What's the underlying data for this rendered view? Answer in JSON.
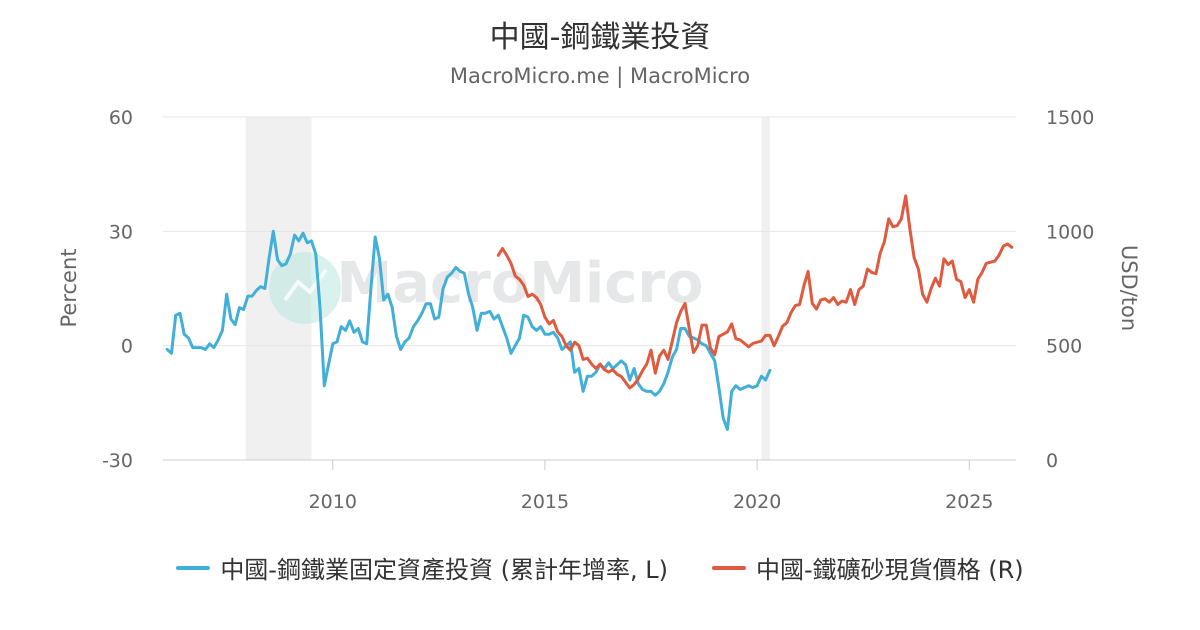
{
  "chart_data": {
    "type": "line",
    "title": "中國-鋼鐵業投資",
    "subtitle": "MacroMicro.me | MacroMicro",
    "watermark": "MacroMicro",
    "y_left": {
      "label": "Percent",
      "ticks": [
        "60",
        "30",
        "0",
        "-30"
      ],
      "range": [
        -30,
        60
      ]
    },
    "y_right": {
      "label": "USD/ton",
      "ticks": [
        "1500",
        "1000",
        "500",
        "0"
      ],
      "range": [
        0,
        1500
      ]
    },
    "x": {
      "ticks": [
        "2010",
        "2015",
        "2020",
        "2025"
      ],
      "range": [
        2006.0,
        2026.1
      ]
    },
    "recessions": [
      [
        2007.95,
        2009.5
      ],
      [
        2020.1,
        2020.3
      ]
    ],
    "grid": true,
    "series": [
      {
        "name": "中國-鋼鐵業固定資產投資 (累計年增率, L)",
        "axis": "left",
        "color": "#42afd8",
        "points": [
          [
            2006.1,
            -1
          ],
          [
            2006.2,
            -2
          ],
          [
            2006.3,
            8
          ],
          [
            2006.4,
            8.5
          ],
          [
            2006.5,
            3
          ],
          [
            2006.6,
            2
          ],
          [
            2006.7,
            -0.5
          ],
          [
            2006.8,
            -0.5
          ],
          [
            2006.9,
            -0.5
          ],
          [
            2007.0,
            -1
          ],
          [
            2007.1,
            0.5
          ],
          [
            2007.2,
            -0.5
          ],
          [
            2007.3,
            1.5
          ],
          [
            2007.4,
            4
          ],
          [
            2007.5,
            13.5
          ],
          [
            2007.6,
            7
          ],
          [
            2007.7,
            5.5
          ],
          [
            2007.8,
            10
          ],
          [
            2007.9,
            9.5
          ],
          [
            2008.0,
            13
          ],
          [
            2008.1,
            13
          ],
          [
            2008.2,
            14.5
          ],
          [
            2008.3,
            15.5
          ],
          [
            2008.4,
            15
          ],
          [
            2008.5,
            23
          ],
          [
            2008.6,
            30
          ],
          [
            2008.7,
            22.5
          ],
          [
            2008.8,
            21
          ],
          [
            2008.9,
            21.5
          ],
          [
            2009.0,
            24
          ],
          [
            2009.1,
            29
          ],
          [
            2009.2,
            27.5
          ],
          [
            2009.3,
            29.5
          ],
          [
            2009.4,
            27
          ],
          [
            2009.5,
            27.5
          ],
          [
            2009.6,
            24
          ],
          [
            2009.7,
            10
          ],
          [
            2009.8,
            -10.5
          ],
          [
            2009.9,
            -5
          ],
          [
            2010.0,
            0.5
          ],
          [
            2010.1,
            1
          ],
          [
            2010.2,
            5
          ],
          [
            2010.3,
            4
          ],
          [
            2010.4,
            6.5
          ],
          [
            2010.5,
            3.5
          ],
          [
            2010.6,
            4.5
          ],
          [
            2010.7,
            1
          ],
          [
            2010.8,
            0.5
          ],
          [
            2010.9,
            15
          ],
          [
            2011.0,
            28.5
          ],
          [
            2011.1,
            23
          ],
          [
            2011.2,
            12
          ],
          [
            2011.3,
            13.5
          ],
          [
            2011.4,
            10
          ],
          [
            2011.5,
            2.5
          ],
          [
            2011.6,
            -1
          ],
          [
            2011.7,
            1
          ],
          [
            2011.8,
            2
          ],
          [
            2011.9,
            5
          ],
          [
            2012.0,
            6.5
          ],
          [
            2012.1,
            8.5
          ],
          [
            2012.2,
            11
          ],
          [
            2012.3,
            11
          ],
          [
            2012.4,
            7
          ],
          [
            2012.5,
            7.5
          ],
          [
            2012.6,
            15
          ],
          [
            2012.7,
            18
          ],
          [
            2012.8,
            19
          ],
          [
            2012.9,
            20.5
          ],
          [
            2013.0,
            19.5
          ],
          [
            2013.1,
            19
          ],
          [
            2013.2,
            13.5
          ],
          [
            2013.3,
            10
          ],
          [
            2013.4,
            4
          ],
          [
            2013.5,
            8.5
          ],
          [
            2013.6,
            8.5
          ],
          [
            2013.7,
            9
          ],
          [
            2013.8,
            7
          ],
          [
            2013.9,
            8
          ],
          [
            2014.0,
            5
          ],
          [
            2014.1,
            2
          ],
          [
            2014.2,
            -2
          ],
          [
            2014.3,
            0
          ],
          [
            2014.4,
            2
          ],
          [
            2014.5,
            8
          ],
          [
            2014.6,
            7.5
          ],
          [
            2014.7,
            5
          ],
          [
            2014.8,
            4
          ],
          [
            2014.9,
            5
          ],
          [
            2015.0,
            3
          ],
          [
            2015.1,
            3
          ],
          [
            2015.2,
            3.5
          ],
          [
            2015.3,
            2
          ],
          [
            2015.4,
            -1
          ],
          [
            2015.5,
            0
          ],
          [
            2015.6,
            1
          ],
          [
            2015.7,
            -7
          ],
          [
            2015.8,
            -6
          ],
          [
            2015.9,
            -12
          ],
          [
            2016.0,
            -8
          ],
          [
            2016.1,
            -8
          ],
          [
            2016.2,
            -7
          ],
          [
            2016.3,
            -5
          ],
          [
            2016.4,
            -6
          ],
          [
            2016.5,
            -4.5
          ],
          [
            2016.6,
            -6
          ],
          [
            2016.7,
            -5
          ],
          [
            2016.8,
            -4
          ],
          [
            2016.9,
            -5
          ],
          [
            2017.0,
            -9
          ],
          [
            2017.1,
            -6
          ],
          [
            2017.2,
            -10
          ],
          [
            2017.3,
            -11.5
          ],
          [
            2017.4,
            -12
          ],
          [
            2017.5,
            -12
          ],
          [
            2017.6,
            -13
          ],
          [
            2017.7,
            -12
          ],
          [
            2017.8,
            -10
          ],
          [
            2017.9,
            -7
          ],
          [
            2018.0,
            -3
          ],
          [
            2018.1,
            -1
          ],
          [
            2018.2,
            4.5
          ],
          [
            2018.3,
            4.5
          ],
          [
            2018.4,
            2.5
          ],
          [
            2018.5,
            2
          ],
          [
            2018.6,
            1.5
          ],
          [
            2018.7,
            0.5
          ],
          [
            2018.8,
            0
          ],
          [
            2018.9,
            -2
          ],
          [
            2019.0,
            -4
          ],
          [
            2019.1,
            -11
          ],
          [
            2019.2,
            -19
          ],
          [
            2019.3,
            -22
          ],
          [
            2019.4,
            -12
          ],
          [
            2019.5,
            -10.5
          ],
          [
            2019.6,
            -11.5
          ],
          [
            2019.7,
            -11
          ],
          [
            2019.8,
            -10.5
          ],
          [
            2019.9,
            -11
          ],
          [
            2020.0,
            -10.5
          ],
          [
            2020.1,
            -8
          ],
          [
            2020.2,
            -9
          ],
          [
            2020.3,
            -6.5
          ]
        ]
      },
      {
        "name": "中國-鐵礦砂現貨價格 (R)",
        "axis": "right",
        "color": "#e05a3f",
        "points": [
          [
            2013.9,
            895
          ],
          [
            2014.0,
            925
          ],
          [
            2014.1,
            895
          ],
          [
            2014.2,
            860
          ],
          [
            2014.3,
            805
          ],
          [
            2014.4,
            790
          ],
          [
            2014.5,
            765
          ],
          [
            2014.6,
            715
          ],
          [
            2014.7,
            725
          ],
          [
            2014.8,
            710
          ],
          [
            2014.9,
            680
          ],
          [
            2015.0,
            625
          ],
          [
            2015.1,
            595
          ],
          [
            2015.2,
            610
          ],
          [
            2015.3,
            560
          ],
          [
            2015.4,
            540
          ],
          [
            2015.5,
            500
          ],
          [
            2015.6,
            480
          ],
          [
            2015.7,
            515
          ],
          [
            2015.8,
            500
          ],
          [
            2015.9,
            440
          ],
          [
            2016.0,
            445
          ],
          [
            2016.1,
            420
          ],
          [
            2016.2,
            400
          ],
          [
            2016.3,
            420
          ],
          [
            2016.4,
            395
          ],
          [
            2016.5,
            385
          ],
          [
            2016.6,
            395
          ],
          [
            2016.7,
            375
          ],
          [
            2016.8,
            365
          ],
          [
            2016.9,
            340
          ],
          [
            2017.0,
            315
          ],
          [
            2017.1,
            330
          ],
          [
            2017.2,
            355
          ],
          [
            2017.3,
            390
          ],
          [
            2017.4,
            420
          ],
          [
            2017.5,
            480
          ],
          [
            2017.6,
            380
          ],
          [
            2017.7,
            455
          ],
          [
            2017.8,
            480
          ],
          [
            2017.9,
            440
          ],
          [
            2018.0,
            520
          ],
          [
            2018.1,
            600
          ],
          [
            2018.2,
            650
          ],
          [
            2018.3,
            685
          ],
          [
            2018.4,
            575
          ],
          [
            2018.5,
            470
          ],
          [
            2018.6,
            500
          ],
          [
            2018.7,
            590
          ],
          [
            2018.8,
            590
          ],
          [
            2018.9,
            490
          ],
          [
            2019.0,
            460
          ],
          [
            2019.1,
            540
          ],
          [
            2019.2,
            550
          ],
          [
            2019.3,
            560
          ],
          [
            2019.4,
            595
          ],
          [
            2019.5,
            530
          ],
          [
            2019.6,
            525
          ],
          [
            2019.7,
            510
          ],
          [
            2019.8,
            495
          ],
          [
            2019.9,
            510
          ],
          [
            2020.0,
            515
          ],
          [
            2020.1,
            520
          ],
          [
            2020.2,
            545
          ],
          [
            2020.3,
            545
          ],
          [
            2020.4,
            500
          ],
          [
            2020.5,
            540
          ],
          [
            2020.6,
            585
          ],
          [
            2020.7,
            600
          ],
          [
            2020.8,
            645
          ],
          [
            2020.9,
            675
          ],
          [
            2021.0,
            680
          ],
          [
            2021.1,
            760
          ],
          [
            2021.2,
            825
          ],
          [
            2021.3,
            685
          ],
          [
            2021.4,
            660
          ],
          [
            2021.5,
            700
          ],
          [
            2021.6,
            705
          ],
          [
            2021.7,
            690
          ],
          [
            2021.8,
            710
          ],
          [
            2021.9,
            680
          ],
          [
            2022.0,
            695
          ],
          [
            2022.1,
            690
          ],
          [
            2022.2,
            745
          ],
          [
            2022.3,
            680
          ],
          [
            2022.4,
            745
          ],
          [
            2022.5,
            760
          ],
          [
            2022.6,
            835
          ],
          [
            2022.7,
            820
          ],
          [
            2022.8,
            815
          ],
          [
            2022.9,
            905
          ],
          [
            2023.0,
            955
          ],
          [
            2023.1,
            1055
          ],
          [
            2023.2,
            1020
          ],
          [
            2023.3,
            1025
          ],
          [
            2023.4,
            1055
          ],
          [
            2023.5,
            1155
          ],
          [
            2023.6,
            1010
          ],
          [
            2023.7,
            885
          ],
          [
            2023.8,
            835
          ],
          [
            2023.9,
            725
          ],
          [
            2024.0,
            690
          ],
          [
            2024.1,
            750
          ],
          [
            2024.2,
            795
          ],
          [
            2024.3,
            760
          ],
          [
            2024.4,
            880
          ],
          [
            2024.5,
            855
          ],
          [
            2024.6,
            870
          ],
          [
            2024.7,
            790
          ],
          [
            2024.8,
            780
          ],
          [
            2024.9,
            710
          ],
          [
            2025.0,
            745
          ],
          [
            2025.1,
            690
          ],
          [
            2025.2,
            790
          ],
          [
            2025.3,
            820
          ],
          [
            2025.4,
            860
          ],
          [
            2025.5,
            865
          ],
          [
            2025.6,
            870
          ],
          [
            2025.7,
            895
          ],
          [
            2025.8,
            935
          ],
          [
            2025.9,
            945
          ],
          [
            2026.0,
            930
          ]
        ]
      }
    ]
  }
}
